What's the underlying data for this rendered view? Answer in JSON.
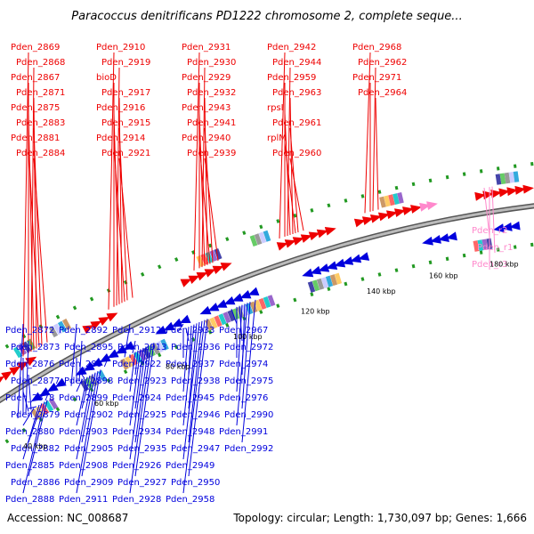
{
  "title": "Paracoccus denitrificans PD1222 chromosome 2, complete seque...",
  "accession_text": "Accession: NC_008687",
  "summary_text": "Topology: circular; Length: 1,730,097 bp; Genes: 1,666",
  "colors": {
    "forward": "#ee0000",
    "reverse": "#0000dd",
    "rna": "#ff88cc",
    "backbone": "#888888",
    "tick": "#229922"
  },
  "scale_labels": [
    "40 kbp",
    "60 kbp",
    "80 kbp",
    "100 kbp",
    "120 kbp",
    "140 kbp",
    "160 kbp",
    "180 kbp"
  ],
  "forward_labels": [
    "Pden_2869",
    "Pden_2868",
    "Pden_2867",
    "Pden_2871",
    "Pden_2875",
    "Pden_2883",
    "Pden_2881",
    "Pden_2884",
    "Pden_2910",
    "Pden_2919",
    "bioD",
    "Pden_2917",
    "Pden_2916",
    "Pden_2915",
    "Pden_2914",
    "Pden_2921",
    "Pden_2931",
    "Pden_2930",
    "Pden_2929",
    "Pden_2932",
    "Pden_2943",
    "Pden_2941",
    "Pden_2940",
    "Pden_2939",
    "Pden_2942",
    "Pden_2944",
    "Pden_2959",
    "Pden_2963",
    "rpsI",
    "Pden_2961",
    "rplM",
    "Pden_2960",
    "Pden_2968",
    "Pden_2962",
    "Pden_2971",
    "Pden_2964"
  ],
  "rna_labels": [
    "Pden_r2",
    "Pden_r1",
    "Pden_r3"
  ],
  "reverse_labels": [
    "Pden_2872",
    "Pden_2873",
    "Pden_2876",
    "Pden_2877",
    "Pden_2878",
    "Pden_2879",
    "Pden_2880",
    "Pden_2882",
    "Pden_2885",
    "Pden_2886",
    "Pden_2888",
    "Pden_2892",
    "Pden_2895",
    "Pden_2897",
    "Pden_2898",
    "Pden_2899",
    "Pden_2902",
    "Pden_2903",
    "Pden_2905",
    "Pden_2908",
    "Pden_2909",
    "Pden_2911",
    "Pden_2912",
    "Pden_2913",
    "Pden_2922",
    "Pden_2923",
    "Pden_2924",
    "Pden_2925",
    "Pden_2934",
    "Pden_2935",
    "Pden_2926",
    "Pden_2927",
    "Pden_2928",
    "Pden_2933",
    "Pden_2936",
    "Pden_2937",
    "Pden_2938",
    "Pden_2945",
    "Pden_2946",
    "Pden_2948",
    "Pden_2947",
    "Pden_2949",
    "Pden_2950",
    "Pden_2958",
    "Pden_2967",
    "Pden_2972",
    "Pden_2974",
    "Pden_2975",
    "Pden_2976",
    "Pden_2990",
    "Pden_2991",
    "Pden_2992"
  ]
}
